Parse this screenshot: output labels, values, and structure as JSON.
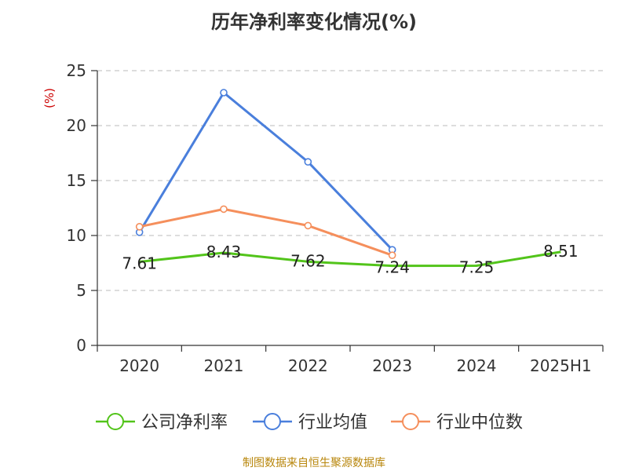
{
  "title": "历年净利率变化情况(%)",
  "source": "制图数据来自恒生聚源数据库",
  "chart_data": {
    "type": "line",
    "title": "历年净利率变化情况(%)",
    "ylabel": "(%)",
    "xlabel": "",
    "ylim": [
      0,
      25
    ],
    "yticks": [
      0,
      5,
      10,
      15,
      20,
      25
    ],
    "grid": true,
    "legend_position": "bottom",
    "categories": [
      "2020",
      "2021",
      "2022",
      "2023",
      "2024",
      "2025H1"
    ],
    "series": [
      {
        "name": "公司净利率",
        "color": "#52c41a",
        "values": [
          7.61,
          8.43,
          7.62,
          7.24,
          7.25,
          8.51
        ],
        "labels": true,
        "markers": false
      },
      {
        "name": "行业均值",
        "color": "#4a7fdc",
        "values": [
          10.3,
          23.0,
          16.7,
          8.7,
          null,
          null
        ],
        "labels": false,
        "markers": true
      },
      {
        "name": "行业中位数",
        "color": "#f58f5c",
        "values": [
          10.8,
          12.4,
          10.9,
          8.2,
          null,
          null
        ],
        "labels": false,
        "markers": true
      }
    ]
  }
}
